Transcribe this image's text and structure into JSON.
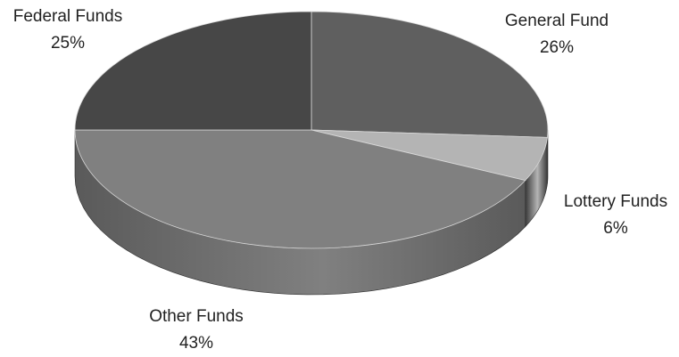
{
  "chart_data": {
    "type": "pie",
    "title": "",
    "legend": "none",
    "slices": [
      {
        "label": "General Fund",
        "value": 26,
        "value_label": "26%",
        "color": "#5f5f5f",
        "side_color": "#4a4a4a"
      },
      {
        "label": "Lottery Funds",
        "value": 6,
        "value_label": "6%",
        "color": "#b4b4b4",
        "side_color": "#3a3a3a"
      },
      {
        "label": "Other Funds",
        "value": 43,
        "value_label": "43%",
        "color": "#808080",
        "side_color": "#5a5a5a"
      },
      {
        "label": "Federal Funds",
        "value": 25,
        "value_label": "25%",
        "color": "#474747",
        "side_color": "#3a3a3a"
      }
    ]
  }
}
